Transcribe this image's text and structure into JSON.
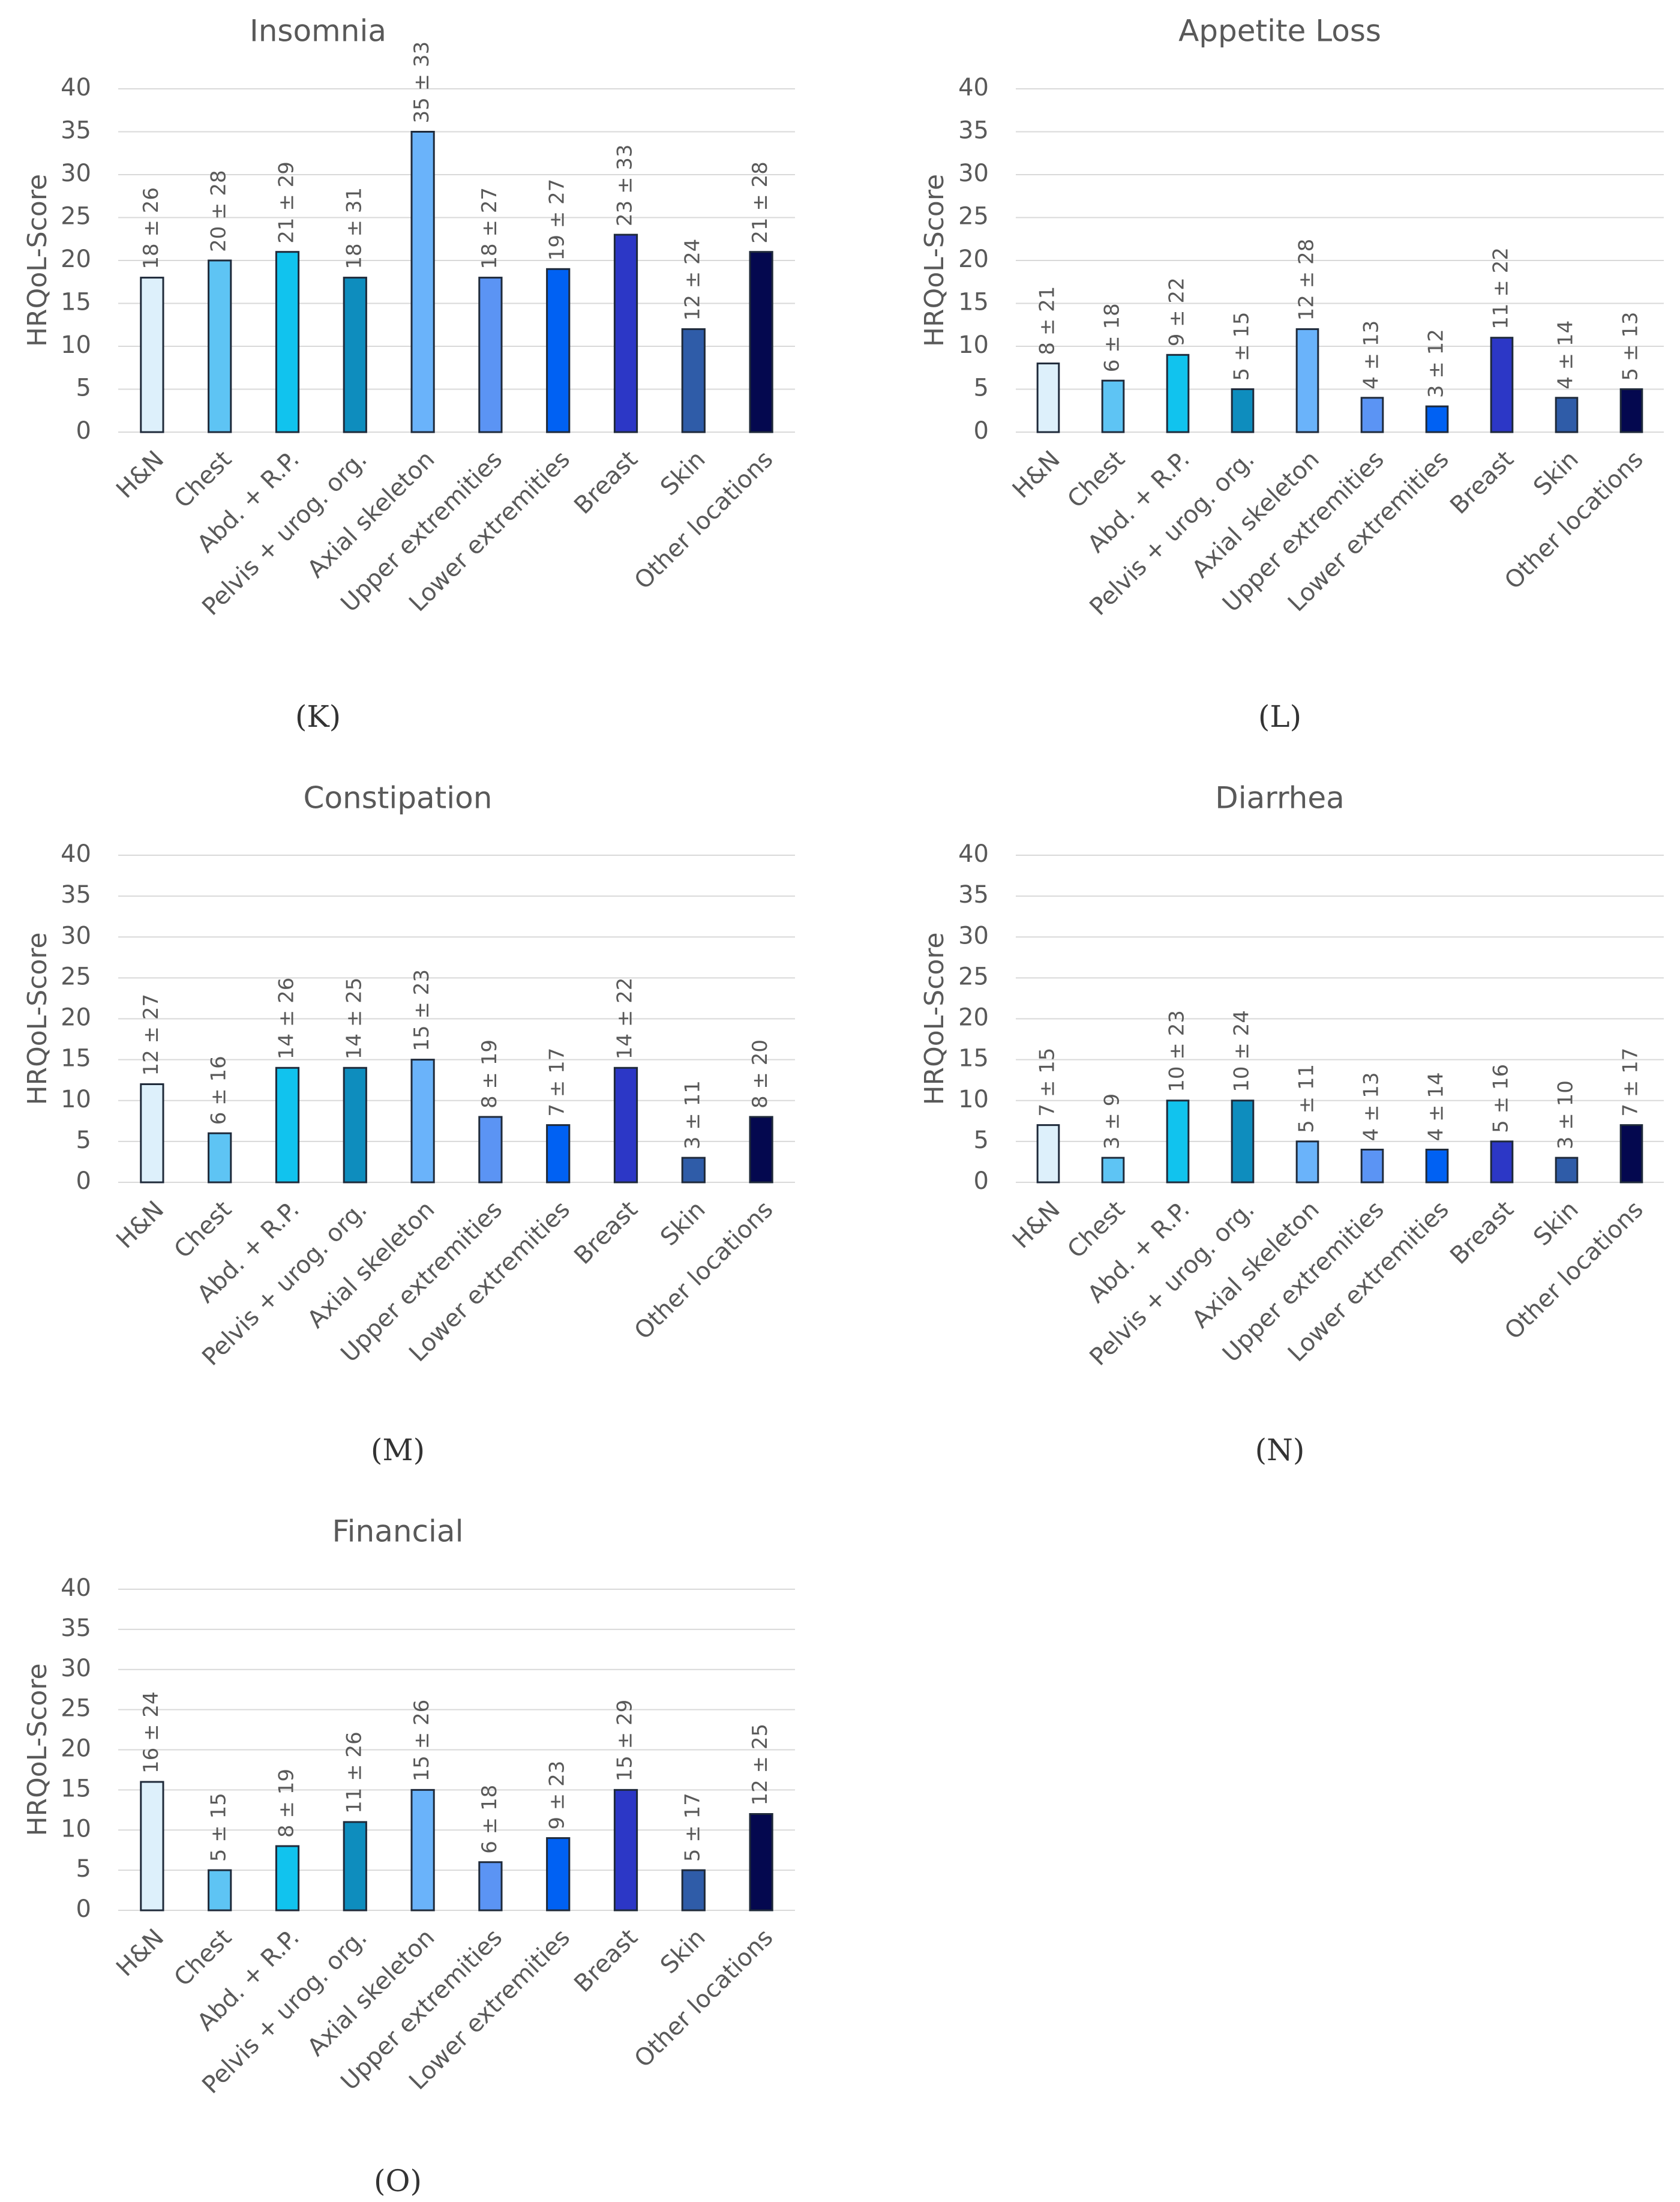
{
  "chart_data": [
    {
      "panel_label": "(K)",
      "type": "bar",
      "title": "Insomnia",
      "ylabel": "HRQoL-Score",
      "ylim": [
        0,
        40
      ],
      "yticks": [
        0,
        5,
        10,
        15,
        20,
        25,
        30,
        35,
        40
      ],
      "grid": true,
      "categories": [
        "H&N",
        "Chest",
        "Abd. + R.P.",
        "Pelvis + urog. org.",
        "Axial skeleton",
        "Upper extremities",
        "Lower extremities",
        "Breast",
        "Skin",
        "Other locations"
      ],
      "values": [
        18,
        20,
        21,
        18,
        35,
        18,
        19,
        23,
        12,
        21
      ],
      "data_labels": [
        "18 ± 26",
        "20 ± 28",
        "21 ± 29",
        "18 ± 31",
        "35 ± 33",
        "18 ± 27",
        "19 ± 27",
        "23 ± 33",
        "12 ± 24",
        "21 ± 28"
      ]
    },
    {
      "panel_label": "(L)",
      "type": "bar",
      "title": "Appetite Loss",
      "ylabel": "HRQoL-Score",
      "ylim": [
        0,
        40
      ],
      "yticks": [
        0,
        5,
        10,
        15,
        20,
        25,
        30,
        35,
        40
      ],
      "grid": true,
      "categories": [
        "H&N",
        "Chest",
        "Abd. + R.P.",
        "Pelvis + urog. org.",
        "Axial skeleton",
        "Upper extremities",
        "Lower extremities",
        "Breast",
        "Skin",
        "Other locations"
      ],
      "values": [
        8,
        6,
        9,
        5,
        12,
        4,
        3,
        11,
        4,
        5
      ],
      "data_labels": [
        "8 ± 21",
        "6 ± 18",
        "9 ± 22",
        "5 ± 15",
        "12 ± 28",
        "4 ± 13",
        "3 ± 12",
        "11 ± 22",
        "4 ± 14",
        "5 ± 13"
      ]
    },
    {
      "panel_label": "(M)",
      "type": "bar",
      "title": "Constipation",
      "ylabel": "HRQoL-Score",
      "ylim": [
        0,
        40
      ],
      "yticks": [
        0,
        5,
        10,
        15,
        20,
        25,
        30,
        35,
        40
      ],
      "grid": true,
      "categories": [
        "H&N",
        "Chest",
        "Abd. + R.P.",
        "Pelvis + urog. org.",
        "Axial skeleton",
        "Upper extremities",
        "Lower extremities",
        "Breast",
        "Skin",
        "Other locations"
      ],
      "values": [
        12,
        6,
        14,
        14,
        15,
        8,
        7,
        14,
        3,
        8
      ],
      "data_labels": [
        "12 ± 27",
        "6 ± 16",
        "14 ± 26",
        "14 ± 25",
        "15 ± 23",
        "8 ± 19",
        "7 ± 17",
        "14 ± 22",
        "3 ± 11",
        "8 ± 20"
      ]
    },
    {
      "panel_label": "(N)",
      "type": "bar",
      "title": "Diarrhea",
      "ylabel": "HRQoL-Score",
      "ylim": [
        0,
        40
      ],
      "yticks": [
        0,
        5,
        10,
        15,
        20,
        25,
        30,
        35,
        40
      ],
      "grid": true,
      "categories": [
        "H&N",
        "Chest",
        "Abd. + R.P.",
        "Pelvis + urog. org.",
        "Axial skeleton",
        "Upper extremities",
        "Lower extremities",
        "Breast",
        "Skin",
        "Other locations"
      ],
      "values": [
        7,
        3,
        10,
        10,
        5,
        4,
        4,
        5,
        3,
        7
      ],
      "data_labels": [
        "7 ± 15",
        "3 ± 9",
        "10 ± 23",
        "10 ± 24",
        "5 ± 11",
        "4 ± 13",
        "4 ± 14",
        "5 ± 16",
        "3 ± 10",
        "7 ± 17"
      ]
    },
    {
      "panel_label": "(O)",
      "type": "bar",
      "title": "Financial",
      "ylabel": "HRQoL-Score",
      "ylim": [
        0,
        40
      ],
      "yticks": [
        0,
        5,
        10,
        15,
        20,
        25,
        30,
        35,
        40
      ],
      "grid": true,
      "categories": [
        "H&N",
        "Chest",
        "Abd. + R.P.",
        "Pelvis + urog. org.",
        "Axial skeleton",
        "Upper extremities",
        "Lower extremities",
        "Breast",
        "Skin",
        "Other locations"
      ],
      "values": [
        16,
        5,
        8,
        11,
        15,
        6,
        9,
        15,
        5,
        12
      ],
      "data_labels": [
        "16 ± 24",
        "5 ± 15",
        "8 ± 19",
        "11 ± 26",
        "15 ± 26",
        "6 ± 18",
        "9 ± 23",
        "15 ± 29",
        "5 ± 17",
        "12 ± 25"
      ]
    }
  ],
  "colors": {
    "bars": [
      "#ddf0fb",
      "#5ec4f4",
      "#11c3ee",
      "#0e8dbe",
      "#6ab3fa",
      "#5b94f4",
      "#0061f3",
      "#2c37c6",
      "#2f5ca8",
      "#04084f"
    ],
    "text": "#595959",
    "grid": "#d9d9d9"
  }
}
